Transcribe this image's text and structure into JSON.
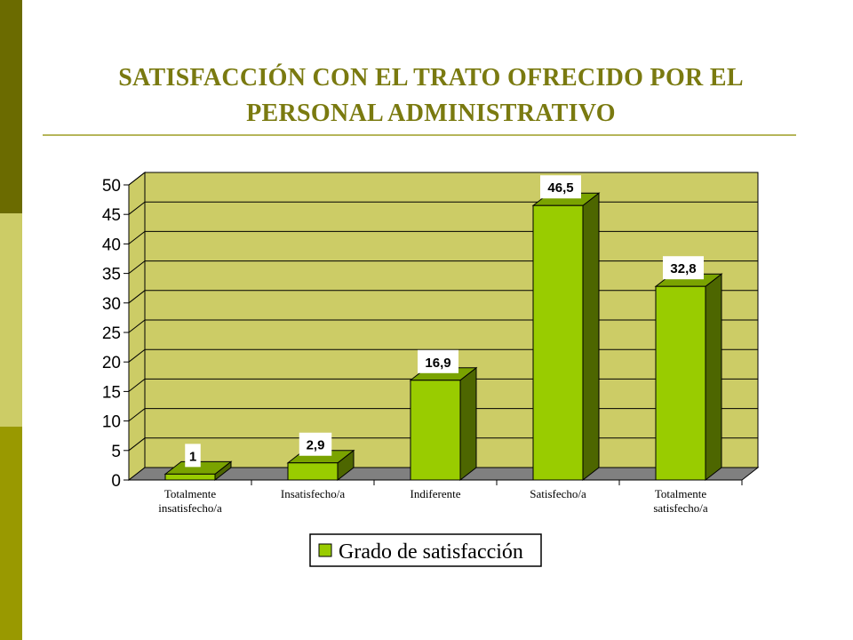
{
  "slide": {
    "title_line1": "SATISFACCIÓN CON EL TRATO OFRECIDO POR EL",
    "title_line2": "PERSONAL ADMINISTRATIVO"
  },
  "colors": {
    "bar_front": "#99cc00",
    "bar_side": "#4d6600",
    "bar_top": "#7aa300",
    "back_wall": "#cccc66",
    "floor": "#808080",
    "title": "#7a7a10"
  },
  "chart_data": {
    "type": "bar",
    "categories": [
      [
        "Totalmente",
        "insatisfecho/a"
      ],
      [
        "Insatisfecho/a"
      ],
      [
        "Indiferente"
      ],
      [
        "Satisfecho/a"
      ],
      [
        "Totalmente",
        "satisfecho/a"
      ]
    ],
    "series": [
      {
        "name": "Grado de satisfacción",
        "values": [
          1,
          2.9,
          16.9,
          46.5,
          32.8
        ]
      }
    ],
    "data_labels": [
      "1",
      "2,9",
      "16,9",
      "46,5",
      "32,8"
    ],
    "ylim": [
      0,
      50
    ],
    "yticks": [
      0,
      5,
      10,
      15,
      20,
      25,
      30,
      35,
      40,
      45,
      50
    ],
    "grid": true,
    "legend_position": "bottom",
    "style": "3d-column"
  }
}
